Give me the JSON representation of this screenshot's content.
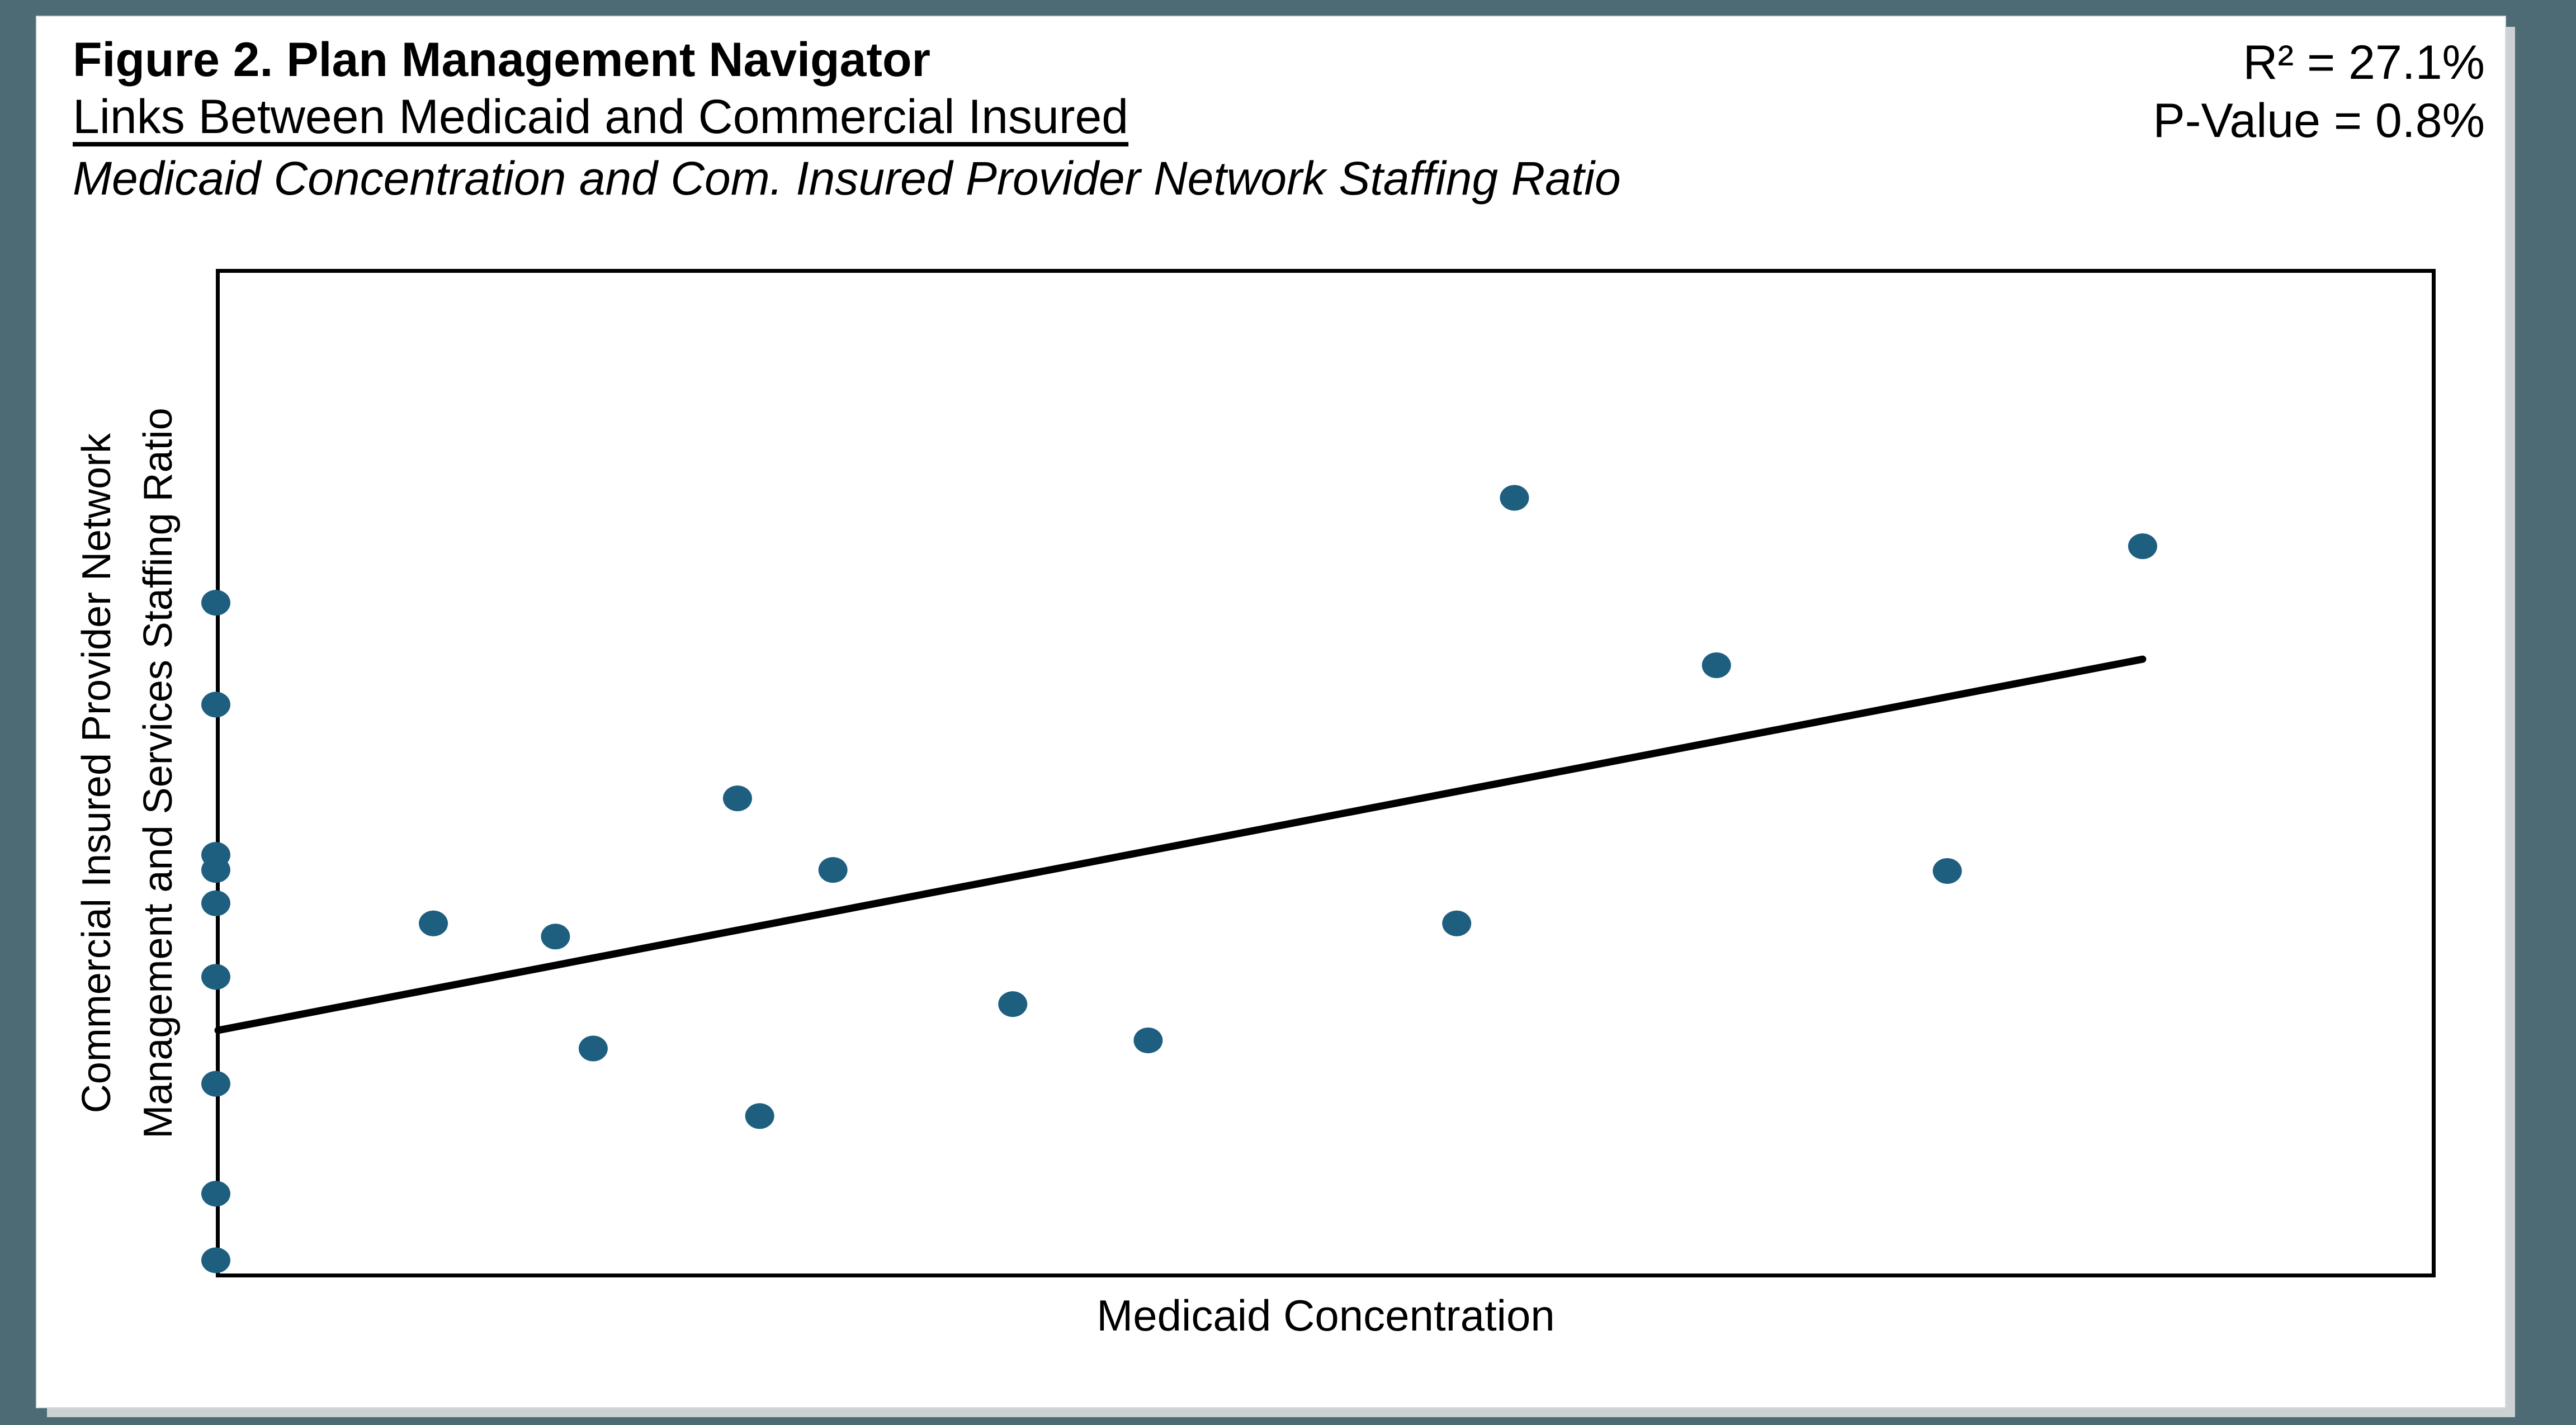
{
  "figure": {
    "title": "Figure 2. Plan Management Navigator",
    "subtitle": "Links Between Medicaid and Commercial Insured",
    "caption": "Medicaid Concentration and Com. Insured Provider Network Staffing Ratio",
    "r_squared_label": "R² = 27.1%",
    "p_value_label": "P-Value = 0.8%"
  },
  "chart_data": {
    "type": "scatter",
    "title": "Medicaid Concentration and Com. Insured Provider Network Staffing Ratio",
    "xlabel": "Medicaid Concentration",
    "ylabel_line1": "Commercial Insured Provider Network",
    "ylabel_line2": "Management and Services Staffing Ratio",
    "x_axis": {
      "min": 0,
      "max": 1,
      "tick_labels": "none",
      "grid": false
    },
    "y_axis": {
      "min": 0,
      "max": 1,
      "tick_labels": "none",
      "grid": false
    },
    "legend": "none",
    "stats": {
      "r_squared_pct": 27.1,
      "p_value_pct": 0.8
    },
    "point_color": "#1E5F80",
    "trend_color": "#000000",
    "axis_color": "#000000",
    "points": [
      {
        "x": 0.0,
        "y": 0.669
      },
      {
        "x": 0.0,
        "y": 0.568
      },
      {
        "x": 0.0,
        "y": 0.419
      },
      {
        "x": 0.0,
        "y": 0.404
      },
      {
        "x": 0.0,
        "y": 0.371
      },
      {
        "x": 0.0,
        "y": 0.298
      },
      {
        "x": 0.0,
        "y": 0.192
      },
      {
        "x": 0.0,
        "y": 0.083
      },
      {
        "x": 0.0,
        "y": 0.017
      },
      {
        "x": 0.098,
        "y": 0.351
      },
      {
        "x": 0.153,
        "y": 0.338
      },
      {
        "x": 0.17,
        "y": 0.227
      },
      {
        "x": 0.235,
        "y": 0.475
      },
      {
        "x": 0.245,
        "y": 0.16
      },
      {
        "x": 0.278,
        "y": 0.404
      },
      {
        "x": 0.359,
        "y": 0.271
      },
      {
        "x": 0.42,
        "y": 0.235
      },
      {
        "x": 0.559,
        "y": 0.351
      },
      {
        "x": 0.585,
        "y": 0.773
      },
      {
        "x": 0.676,
        "y": 0.607
      },
      {
        "x": 0.78,
        "y": 0.403
      },
      {
        "x": 0.868,
        "y": 0.725
      }
    ],
    "trendline": {
      "x1": 0.001,
      "y1": 0.245,
      "x2": 0.868,
      "y2": 0.613
    }
  },
  "colors": {
    "background": "#4C6B75",
    "card": "#ffffff",
    "card_shadow": "#ccd1d3",
    "text": "#000000"
  }
}
